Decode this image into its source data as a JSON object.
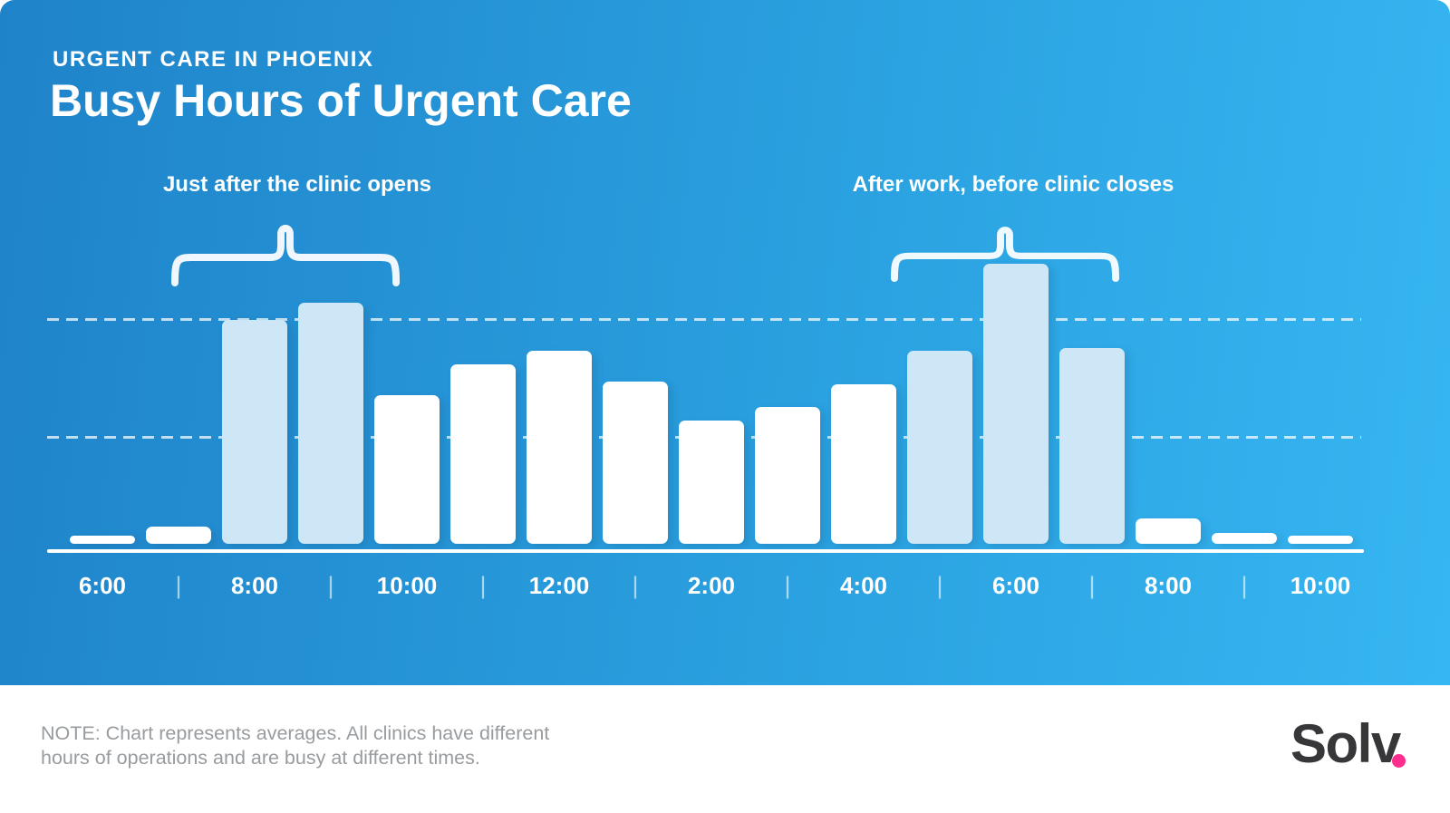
{
  "header": {
    "eyebrow": "URGENT CARE IN PHOENIX",
    "title": "Busy Hours of Urgent Care"
  },
  "annotations": {
    "left": "Just after the clinic opens",
    "right": "After work, before clinic closes"
  },
  "chart_data": {
    "type": "bar",
    "title": "Busy Hours of Urgent Care",
    "subtitle": "URGENT CARE IN PHOENIX",
    "xlabel": "",
    "ylabel": "",
    "ylim": [
      0,
      100
    ],
    "legend": "none",
    "gridlines": {
      "style": "dashed-horizontal",
      "count": 2,
      "positions_pct_of_peak": [
        80,
        38
      ]
    },
    "x_tick_labels": [
      "6:00",
      "8:00",
      "10:00",
      "12:00",
      "2:00",
      "4:00",
      "6:00",
      "8:00",
      "10:00"
    ],
    "tick_separator": "|",
    "bars": [
      {
        "value_pct": 3,
        "highlighted": false
      },
      {
        "value_pct": 6,
        "highlighted": false
      },
      {
        "value_pct": 80,
        "highlighted": true
      },
      {
        "value_pct": 86,
        "highlighted": true
      },
      {
        "value_pct": 53,
        "highlighted": false
      },
      {
        "value_pct": 64,
        "highlighted": false
      },
      {
        "value_pct": 69,
        "highlighted": false
      },
      {
        "value_pct": 58,
        "highlighted": false
      },
      {
        "value_pct": 44,
        "highlighted": false
      },
      {
        "value_pct": 49,
        "highlighted": false
      },
      {
        "value_pct": 57,
        "highlighted": false
      },
      {
        "value_pct": 69,
        "highlighted": true
      },
      {
        "value_pct": 100,
        "highlighted": true
      },
      {
        "value_pct": 70,
        "highlighted": true
      },
      {
        "value_pct": 9,
        "highlighted": false
      },
      {
        "value_pct": 4,
        "highlighted": false
      },
      {
        "value_pct": 3,
        "highlighted": false
      }
    ],
    "highlight_groups": [
      {
        "label": "Just after the clinic opens",
        "bar_indices": [
          2,
          3
        ]
      },
      {
        "label": "After work, before clinic closes",
        "bar_indices": [
          11,
          12,
          13
        ]
      }
    ],
    "colors": {
      "background_left": "#1F83C9",
      "background_right": "#36B6F2",
      "bar_default": "#FFFFFF",
      "bar_highlight": "#CDE7F7",
      "axis_text": "#FFFFFF"
    }
  },
  "footer": {
    "note_line1": "NOTE: Chart represents averages. All clinics have different",
    "note_line2": "hours of operations and are busy at different times.",
    "logo_text": "Solv",
    "logo_dot_color": "#FF2E8E"
  }
}
